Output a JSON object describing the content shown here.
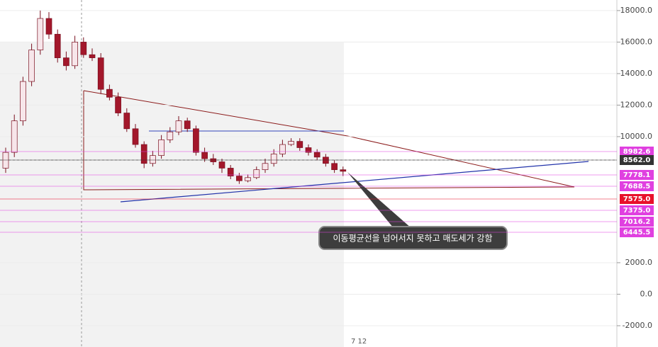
{
  "chart_data": {
    "type": "candlestick",
    "ylim": [
      -3350,
      18670
    ],
    "yticks": [
      {
        "value": 18000,
        "label": "18000.0"
      },
      {
        "value": 16000,
        "label": "16000.0"
      },
      {
        "value": 14000,
        "label": "14000.0"
      },
      {
        "value": 12000,
        "label": "12000.0"
      },
      {
        "value": 10000,
        "label": "10000.0"
      },
      {
        "value": 2000,
        "label": "2000.0"
      },
      {
        "value": 0,
        "label": "0.0"
      },
      {
        "value": -2000,
        "label": "-2000.0"
      }
    ],
    "grid": true,
    "up_color": "#f7e6ea",
    "down_color": "#a3172b",
    "open": [
      8000,
      9000,
      11000,
      13500,
      15500,
      17500,
      16500,
      15000,
      14500,
      16000,
      15200,
      15000,
      13000,
      12500,
      11500,
      10500,
      9500,
      8300,
      8800,
      9800,
      10300,
      11000,
      10500,
      9000,
      8600,
      8400,
      8000,
      7500,
      7200,
      7400,
      7900,
      8300,
      8900,
      9500,
      9700,
      9300,
      9000,
      8700,
      8300,
      7900
    ],
    "high": [
      9300,
      11400,
      13800,
      15900,
      18000,
      17900,
      16800,
      15400,
      16400,
      16300,
      15600,
      15300,
      13300,
      12800,
      11800,
      10800,
      9700,
      9100,
      10100,
      10600,
      11300,
      11200,
      10700,
      9300,
      8900,
      8600,
      8200,
      7700,
      7600,
      8100,
      8600,
      9200,
      9800,
      9900,
      9900,
      9500,
      9200,
      8900,
      8500,
      8100
    ],
    "low": [
      7700,
      8700,
      10700,
      13200,
      15200,
      16200,
      14700,
      14200,
      14300,
      15000,
      14800,
      12700,
      12300,
      11300,
      10300,
      9300,
      8000,
      8100,
      8600,
      9600,
      10100,
      10300,
      8800,
      8400,
      8200,
      7700,
      7300,
      7000,
      7100,
      7300,
      7700,
      8100,
      8700,
      9400,
      9100,
      8800,
      8500,
      8100,
      7700,
      7500
    ],
    "close": [
      9000,
      11000,
      13500,
      15500,
      17500,
      16500,
      15000,
      14500,
      16000,
      15200,
      15000,
      13000,
      12500,
      11500,
      10500,
      9500,
      8300,
      8800,
      9800,
      10300,
      11000,
      10500,
      9000,
      8600,
      8400,
      8000,
      7500,
      7200,
      7400,
      7900,
      8300,
      8900,
      9500,
      9700,
      9300,
      9000,
      8700,
      8300,
      7900,
      7800
    ],
    "price_labels": [
      {
        "label": "8982.6",
        "color": "#e040e0"
      },
      {
        "label": "8562.0",
        "color": "#333333"
      },
      {
        "label": "7778.1",
        "color": "#e040e0"
      },
      {
        "label": "7688.5",
        "color": "#e040e0"
      },
      {
        "label": "7575.0",
        "color": "#e8102a"
      },
      {
        "label": "7375.0",
        "color": "#e040e0"
      },
      {
        "label": "7016.2",
        "color": "#e040e0"
      },
      {
        "label": "6445.5",
        "color": "#e040e0"
      }
    ],
    "annotation": "이동평균선을 넘어서지 못하고 매도세가 강함",
    "corner_note": "7 12"
  }
}
